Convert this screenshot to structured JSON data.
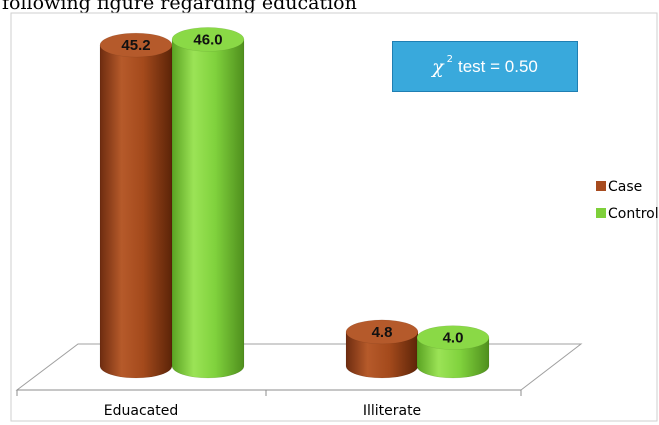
{
  "caption_fragment": "following figure regarding education",
  "stat_box": {
    "symbol": "χ",
    "superscript": "2",
    "text": "test = 0.50"
  },
  "chart_data": {
    "type": "bar",
    "categories": [
      "Eduacated",
      "Illiterate"
    ],
    "series": [
      {
        "name": "Case",
        "values": [
          45.2,
          4.8
        ],
        "color": "#a74b1f"
      },
      {
        "name": "Control",
        "values": [
          46.0,
          4.0
        ],
        "color": "#7ed03a"
      }
    ],
    "value_labels": [
      [
        "45.2",
        "4.8"
      ],
      [
        "46.0",
        "4.0"
      ]
    ],
    "ylim": [
      0,
      50
    ],
    "style": "3d-cylinder",
    "grid": false,
    "legend": "right"
  }
}
